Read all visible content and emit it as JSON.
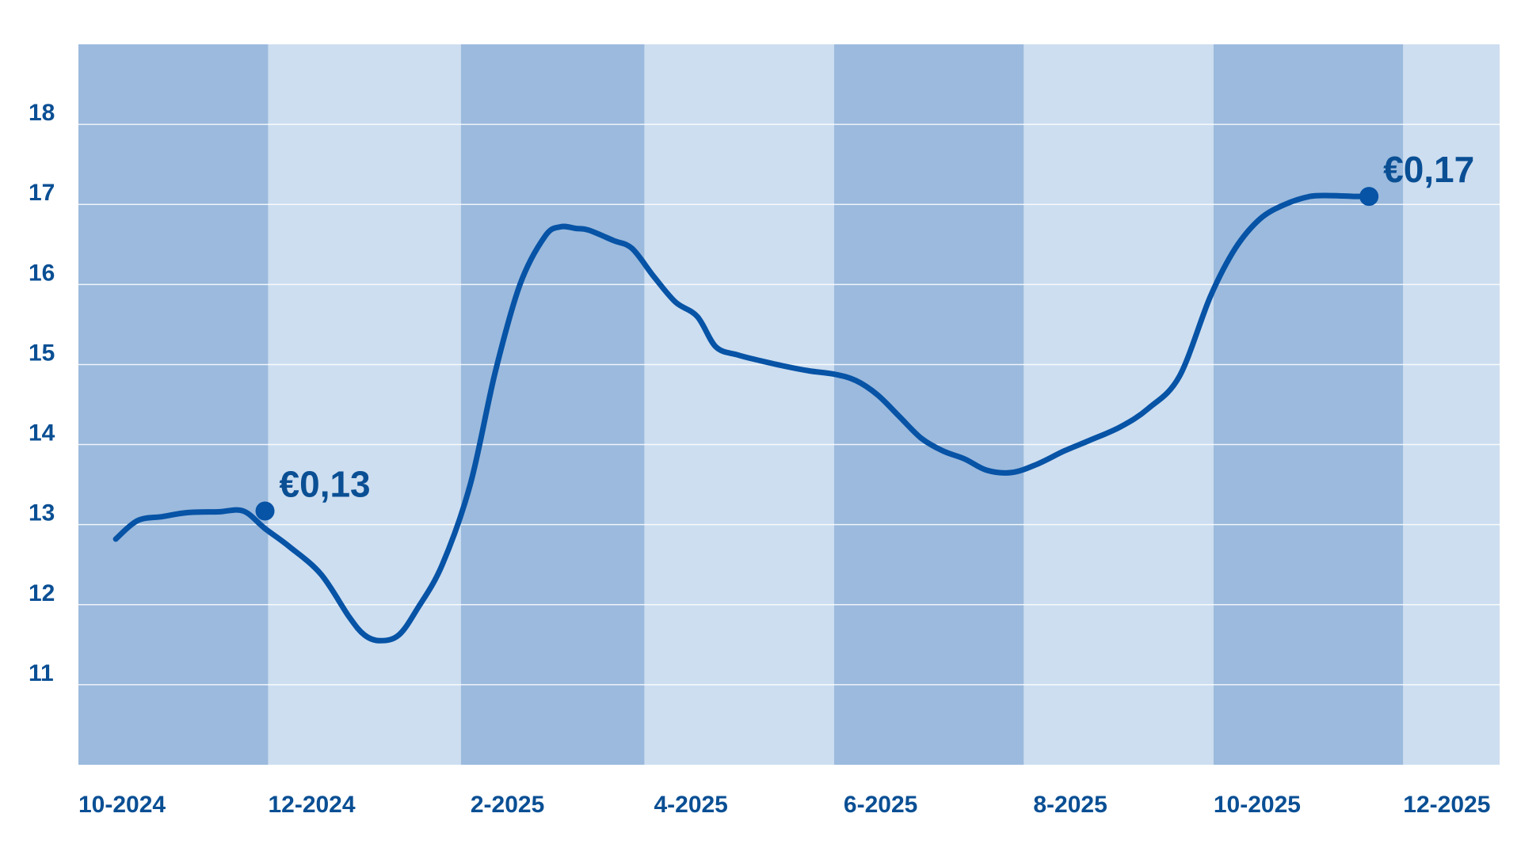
{
  "chart_data": {
    "type": "line",
    "title": "",
    "xlabel": "",
    "ylabel": "",
    "x_tick_labels": [
      "10-2024",
      "12-2024",
      "2-2025",
      "4-2025",
      "6-2025",
      "8-2025",
      "10-2025",
      "12-2025"
    ],
    "y_ticks": [
      11,
      12,
      13,
      14,
      15,
      16,
      17,
      18
    ],
    "ylim": [
      10,
      19
    ],
    "xlim": [
      "2024-10-01",
      "2026-01-01"
    ],
    "grid": true,
    "legend": "none",
    "colors": {
      "band_dark": "#9bbadd",
      "band_light": "#cddef0",
      "line": "#0753a6",
      "text": "#0a4f94"
    },
    "series": [
      {
        "x": [
          "2024-10-13",
          "2024-10-20",
          "2024-10-28",
          "2024-11-05",
          "2024-11-15",
          "2024-11-23",
          "2024-11-30",
          "2024-12-08",
          "2024-12-18",
          "2024-12-27",
          "2025-01-01",
          "2025-01-06",
          "2025-01-12",
          "2025-01-18",
          "2025-01-26",
          "2025-02-04",
          "2025-02-12",
          "2025-02-20",
          "2025-02-28",
          "2025-03-05",
          "2025-03-10",
          "2025-03-14",
          "2025-03-22",
          "2025-03-28",
          "2025-04-04",
          "2025-04-11",
          "2025-04-18",
          "2025-04-24",
          "2025-05-01",
          "2025-05-08",
          "2025-05-16",
          "2025-05-24",
          "2025-06-01",
          "2025-06-08",
          "2025-06-15",
          "2025-06-22",
          "2025-06-29",
          "2025-07-06",
          "2025-07-13",
          "2025-07-20",
          "2025-07-28",
          "2025-08-05",
          "2025-08-14",
          "2025-08-22",
          "2025-09-01",
          "2025-09-10",
          "2025-09-20",
          "2025-09-30",
          "2025-10-08",
          "2025-10-16",
          "2025-10-24",
          "2025-11-01",
          "2025-11-08",
          "2025-11-15",
          "2025-11-20"
        ],
        "values": [
          12.82,
          13.05,
          13.1,
          13.15,
          13.16,
          13.17,
          12.95,
          12.72,
          12.38,
          11.85,
          11.62,
          11.55,
          11.62,
          11.95,
          12.5,
          13.5,
          14.9,
          16.0,
          16.6,
          16.72,
          16.7,
          16.68,
          16.55,
          16.45,
          16.1,
          15.78,
          15.6,
          15.22,
          15.12,
          15.05,
          14.98,
          14.92,
          14.88,
          14.8,
          14.62,
          14.35,
          14.08,
          13.92,
          13.82,
          13.68,
          13.65,
          13.75,
          13.92,
          14.05,
          14.22,
          14.45,
          14.85,
          15.85,
          16.45,
          16.82,
          17.0,
          17.1,
          17.11,
          17.1,
          17.1
        ]
      }
    ],
    "annotations": [
      {
        "label": "€0,13",
        "x": "2024-11-30",
        "y": 13.17
      },
      {
        "label": "€0,17",
        "x": "2025-11-20",
        "y": 17.1
      }
    ]
  }
}
